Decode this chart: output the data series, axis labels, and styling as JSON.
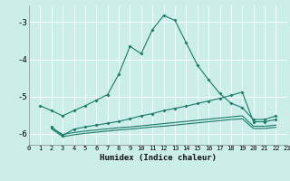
{
  "background_color": "#cceee8",
  "grid_color": "#b8ddd8",
  "line_color": "#1a7a6a",
  "xlabel": "Humidex (Indice chaleur)",
  "xlim": [
    0,
    23
  ],
  "ylim": [
    -6.3,
    -2.55
  ],
  "xticks": [
    0,
    1,
    2,
    3,
    4,
    5,
    6,
    7,
    8,
    9,
    10,
    11,
    12,
    13,
    14,
    15,
    16,
    17,
    18,
    19,
    20,
    21,
    22,
    23
  ],
  "yticks": [
    -6,
    -5,
    -4,
    -3
  ],
  "series1_x": [
    1,
    2,
    3,
    4,
    5,
    6,
    7,
    8,
    9,
    10,
    11,
    12,
    13,
    14,
    15,
    16,
    17,
    18,
    19,
    20,
    21,
    22
  ],
  "series1_y": [
    -5.25,
    -5.38,
    -5.52,
    -5.38,
    -5.25,
    -5.1,
    -4.95,
    -4.4,
    -3.65,
    -3.85,
    -3.2,
    -2.82,
    -2.95,
    -3.55,
    -4.15,
    -4.55,
    -4.92,
    -5.18,
    -5.3,
    -5.62,
    -5.62,
    -5.52
  ],
  "series2_x": [
    2,
    3,
    4,
    5,
    6,
    7,
    8,
    9,
    10,
    11,
    12,
    13,
    14,
    15,
    16,
    17,
    18,
    19,
    20,
    21,
    22
  ],
  "series2_y": [
    -5.82,
    -6.05,
    -5.88,
    -5.82,
    -5.77,
    -5.72,
    -5.67,
    -5.6,
    -5.52,
    -5.46,
    -5.38,
    -5.32,
    -5.26,
    -5.19,
    -5.12,
    -5.05,
    -4.97,
    -4.88,
    -5.68,
    -5.68,
    -5.62
  ],
  "series3_x": [
    2,
    3,
    4,
    5,
    6,
    7,
    8,
    9,
    10,
    11,
    12,
    13,
    14,
    15,
    16,
    17,
    18,
    19,
    20,
    21,
    22
  ],
  "series3_y": [
    -5.85,
    -6.02,
    -5.97,
    -5.93,
    -5.9,
    -5.87,
    -5.84,
    -5.82,
    -5.79,
    -5.76,
    -5.73,
    -5.7,
    -5.67,
    -5.64,
    -5.61,
    -5.58,
    -5.55,
    -5.52,
    -5.8,
    -5.8,
    -5.77
  ],
  "series4_x": [
    2,
    3,
    4,
    5,
    6,
    7,
    8,
    9,
    10,
    11,
    12,
    13,
    14,
    15,
    16,
    17,
    18,
    19,
    20,
    21,
    22
  ],
  "series4_y": [
    -5.87,
    -6.08,
    -6.03,
    -5.99,
    -5.96,
    -5.93,
    -5.9,
    -5.88,
    -5.85,
    -5.82,
    -5.8,
    -5.77,
    -5.74,
    -5.71,
    -5.68,
    -5.65,
    -5.62,
    -5.6,
    -5.86,
    -5.86,
    -5.83
  ]
}
